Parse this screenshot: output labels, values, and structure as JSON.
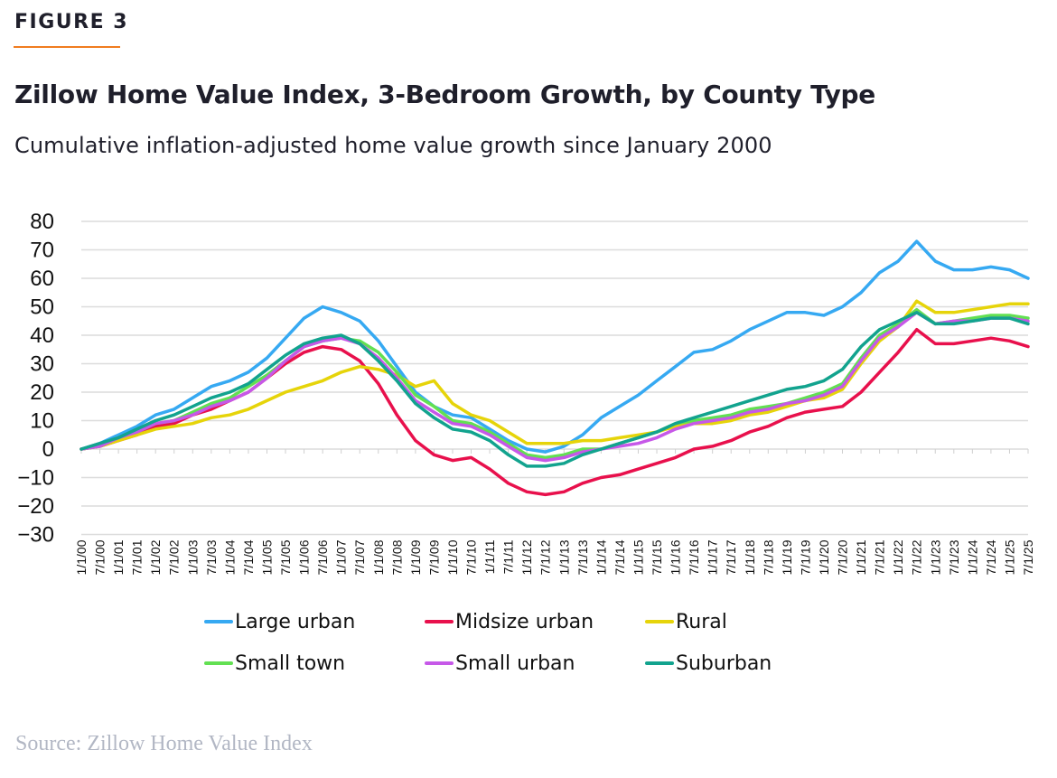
{
  "figure_label": "FIGURE 3",
  "accent_color": "#f07c1f",
  "title": "Zillow Home Value Index, 3-Bedroom Growth, by County Type",
  "subtitle": "Cumulative inflation-adjusted home value growth since January 2000",
  "source": "Source: Zillow Home Value Index",
  "chart_data": {
    "type": "line",
    "title": "Zillow Home Value Index, 3-Bedroom Growth, by County Type",
    "subtitle": "Cumulative inflation-adjusted home value growth since January 2000",
    "xlabel": "",
    "ylabel": "",
    "ylim": [
      -30,
      80
    ],
    "yticks": [
      80,
      70,
      60,
      50,
      40,
      30,
      20,
      10,
      0,
      -10,
      -20,
      -30
    ],
    "ytick_labels": [
      "80",
      "70",
      "60",
      "50",
      "40",
      "30",
      "20",
      "10",
      "0",
      "−10",
      "−20",
      "−30"
    ],
    "grid": true,
    "legend_position": "bottom",
    "x": [
      "1/1/00",
      "7/1/00",
      "1/1/01",
      "7/1/01",
      "1/1/02",
      "7/1/02",
      "1/1/03",
      "7/1/03",
      "1/1/04",
      "7/1/04",
      "1/1/05",
      "7/1/05",
      "1/1/06",
      "7/1/06",
      "1/1/07",
      "7/1/07",
      "1/1/08",
      "7/1/08",
      "1/1/09",
      "7/1/09",
      "1/1/10",
      "7/1/10",
      "1/1/11",
      "7/1/11",
      "1/1/12",
      "7/1/12",
      "1/1/13",
      "7/1/13",
      "1/1/14",
      "7/1/14",
      "1/1/15",
      "7/1/15",
      "1/1/16",
      "7/1/16",
      "1/1/17",
      "7/1/17",
      "1/1/18",
      "7/1/18",
      "1/1/19",
      "7/1/19",
      "1/1/20",
      "7/1/20",
      "1/1/21",
      "7/1/21",
      "1/1/22",
      "7/1/22",
      "1/1/23",
      "7/1/23",
      "1/1/24",
      "7/1/24",
      "1/1/25",
      "7/1/25"
    ],
    "series": [
      {
        "name": "Large urban",
        "color": "#36a9f2",
        "values": [
          0,
          2,
          5,
          8,
          12,
          14,
          18,
          22,
          24,
          27,
          32,
          39,
          46,
          50,
          48,
          45,
          38,
          29,
          20,
          15,
          12,
          11,
          7,
          3,
          0,
          -1,
          1,
          5,
          11,
          15,
          19,
          24,
          29,
          34,
          35,
          38,
          42,
          45,
          48,
          48,
          47,
          50,
          55,
          62,
          66,
          73,
          66,
          63,
          63,
          64,
          63,
          60
        ]
      },
      {
        "name": "Midsize urban",
        "color": "#e8104c",
        "values": [
          0,
          1,
          3,
          5,
          8,
          9,
          12,
          14,
          17,
          20,
          25,
          30,
          34,
          36,
          35,
          31,
          23,
          12,
          3,
          -2,
          -4,
          -3,
          -7,
          -12,
          -15,
          -16,
          -15,
          -12,
          -10,
          -9,
          -7,
          -5,
          -3,
          0,
          1,
          3,
          6,
          8,
          11,
          13,
          14,
          15,
          20,
          27,
          34,
          42,
          37,
          37,
          38,
          39,
          38,
          36
        ]
      },
      {
        "name": "Rural",
        "color": "#e6d40a",
        "values": [
          0,
          1,
          3,
          5,
          7,
          8,
          9,
          11,
          12,
          14,
          17,
          20,
          22,
          24,
          27,
          29,
          28,
          26,
          22,
          24,
          16,
          12,
          10,
          6,
          2,
          2,
          2,
          3,
          3,
          4,
          5,
          6,
          8,
          9,
          9,
          10,
          12,
          13,
          15,
          17,
          18,
          21,
          30,
          38,
          43,
          52,
          48,
          48,
          49,
          50,
          51,
          51
        ]
      },
      {
        "name": "Small town",
        "color": "#62e052",
        "values": [
          0,
          1,
          4,
          6,
          9,
          10,
          13,
          16,
          18,
          22,
          26,
          31,
          36,
          38,
          39,
          38,
          34,
          27,
          19,
          15,
          10,
          9,
          6,
          2,
          -2,
          -3,
          -2,
          0,
          0,
          2,
          4,
          6,
          9,
          10,
          11,
          12,
          14,
          15,
          16,
          18,
          20,
          23,
          32,
          40,
          44,
          49,
          44,
          45,
          46,
          47,
          47,
          46
        ]
      },
      {
        "name": "Small urban",
        "color": "#c658e8",
        "values": [
          0,
          1,
          4,
          6,
          9,
          10,
          12,
          15,
          17,
          20,
          25,
          31,
          36,
          38,
          39,
          37,
          32,
          25,
          17,
          13,
          9,
          8,
          5,
          1,
          -3,
          -4,
          -3,
          -1,
          0,
          1,
          2,
          4,
          7,
          9,
          10,
          11,
          13,
          14,
          16,
          17,
          19,
          22,
          31,
          39,
          43,
          48,
          44,
          45,
          45,
          46,
          46,
          45
        ]
      },
      {
        "name": "Suburban",
        "color": "#12a38e",
        "values": [
          0,
          2,
          4,
          7,
          10,
          12,
          15,
          18,
          20,
          23,
          28,
          33,
          37,
          39,
          40,
          37,
          31,
          24,
          16,
          11,
          7,
          6,
          3,
          -2,
          -6,
          -6,
          -5,
          -2,
          0,
          2,
          4,
          6,
          9,
          11,
          13,
          15,
          17,
          19,
          21,
          22,
          24,
          28,
          36,
          42,
          45,
          48,
          44,
          44,
          45,
          46,
          46,
          44
        ]
      }
    ]
  }
}
